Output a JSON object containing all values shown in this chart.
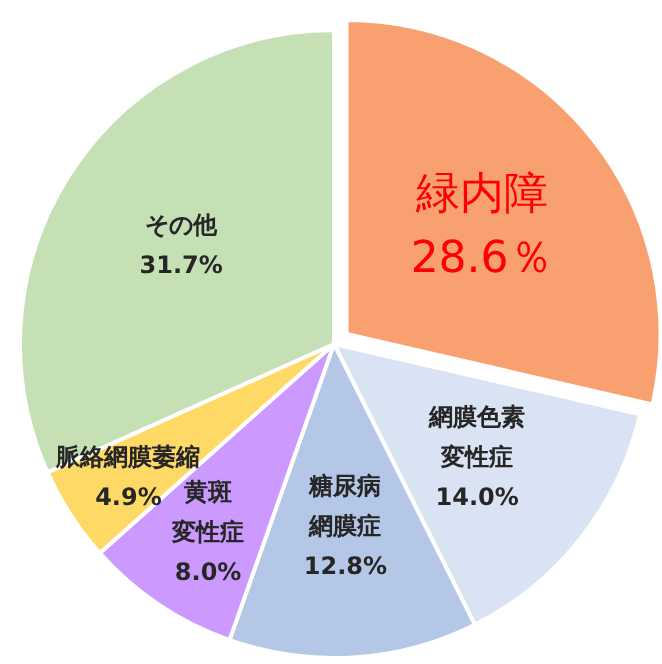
{
  "chart_data": {
    "type": "pie",
    "categories": [
      "緑内障",
      "網膜色素変性症",
      "糖尿病網膜症",
      "黄斑変性症",
      "脈絡網膜萎縮",
      "その他"
    ],
    "values": [
      28.6,
      14.0,
      12.8,
      8.0,
      4.9,
      31.7
    ],
    "colors": [
      "#f9a070",
      "#dae3f3",
      "#b4c7e7",
      "#cc99ff",
      "#ffd966",
      "#c5e0b4"
    ],
    "data_labels": true,
    "value_labels": [
      "28.6％",
      "14.0%",
      "12.8%",
      "8.0%",
      "4.9%",
      "31.7%"
    ]
  }
}
